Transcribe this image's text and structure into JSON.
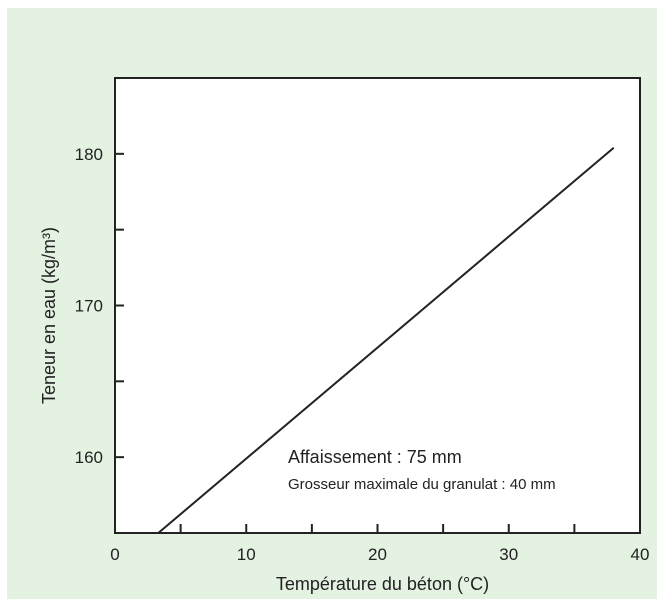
{
  "chart_data": {
    "type": "line",
    "title": "",
    "xlabel": "Température du béton (°C)",
    "ylabel": "Teneur en eau (kg/m³)",
    "xlim": [
      0,
      40
    ],
    "ylim": [
      155,
      185
    ],
    "x_ticks_major": [
      0,
      10,
      20,
      30,
      40
    ],
    "x_ticks_minor": [
      5,
      15,
      25,
      35
    ],
    "y_ticks_major": [
      160,
      170,
      180
    ],
    "y_ticks_minor": [
      165,
      175
    ],
    "grid": false,
    "series": [
      {
        "x": [
          3.3,
          38
        ],
        "y": [
          155,
          180.4
        ]
      }
    ],
    "annotations": [
      "Affaissement : 75 mm",
      "Grosseur maximale du granulat : 40 mm"
    ],
    "colors": {
      "background": "#e4f2e2",
      "plot_area": "#ffffff",
      "line": "#222222"
    }
  }
}
